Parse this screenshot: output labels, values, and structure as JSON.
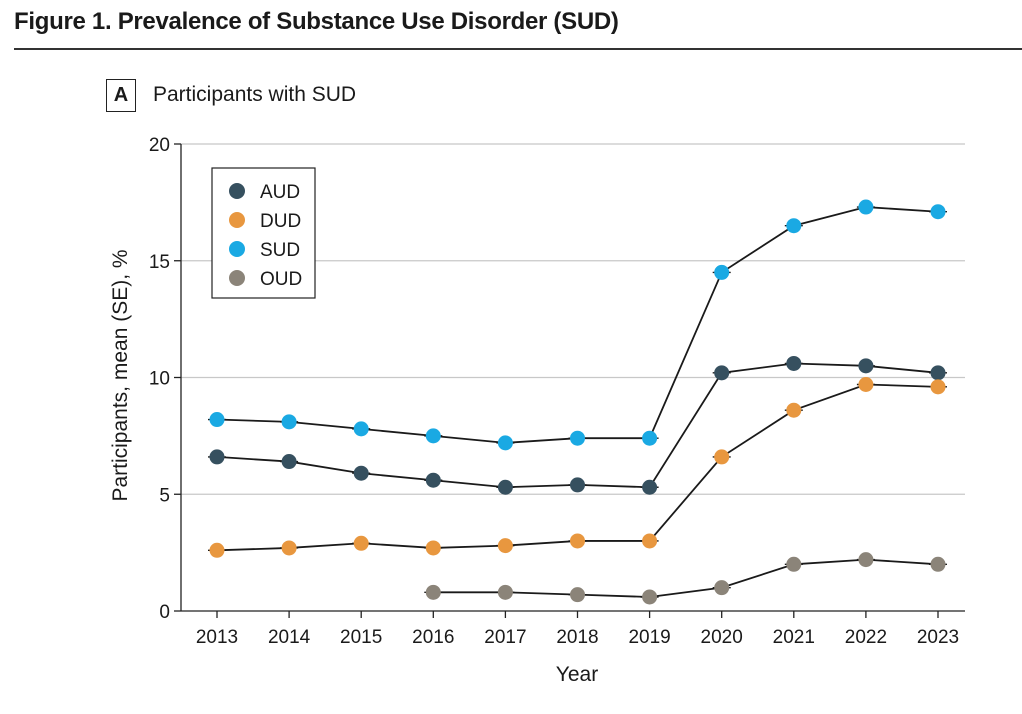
{
  "figure": {
    "title": "Figure 1. Prevalence of Substance Use Disorder (SUD)",
    "panel_letter": "A",
    "panel_title": "Participants with SUD"
  },
  "chart_data": {
    "type": "line",
    "title": "Participants with SUD",
    "xlabel": "Year",
    "ylabel": "Participants, mean (SE), %",
    "ylim": [
      0,
      20
    ],
    "yticks": [
      0,
      5,
      10,
      15,
      20
    ],
    "grid": true,
    "legend_position": "top-left",
    "categories": [
      "2013",
      "2014",
      "2015",
      "2016",
      "2017",
      "2018",
      "2019",
      "2020",
      "2021",
      "2022",
      "2023"
    ],
    "series": [
      {
        "name": "AUD",
        "color": "#36505f",
        "values": [
          6.6,
          6.4,
          5.9,
          5.6,
          5.3,
          5.4,
          5.3,
          10.2,
          10.6,
          10.5,
          10.2
        ]
      },
      {
        "name": "DUD",
        "color": "#e8973f",
        "values": [
          2.6,
          2.7,
          2.9,
          2.7,
          2.8,
          3.0,
          3.0,
          6.6,
          8.6,
          9.7,
          9.6
        ]
      },
      {
        "name": "SUD",
        "color": "#1aa9e3",
        "values": [
          8.2,
          8.1,
          7.8,
          7.5,
          7.2,
          7.4,
          7.4,
          14.5,
          16.5,
          17.3,
          17.1
        ]
      },
      {
        "name": "OUD",
        "color": "#8b8479",
        "values": [
          null,
          null,
          null,
          0.8,
          0.8,
          0.7,
          0.6,
          1.0,
          2.0,
          2.2,
          2.0
        ]
      }
    ]
  }
}
